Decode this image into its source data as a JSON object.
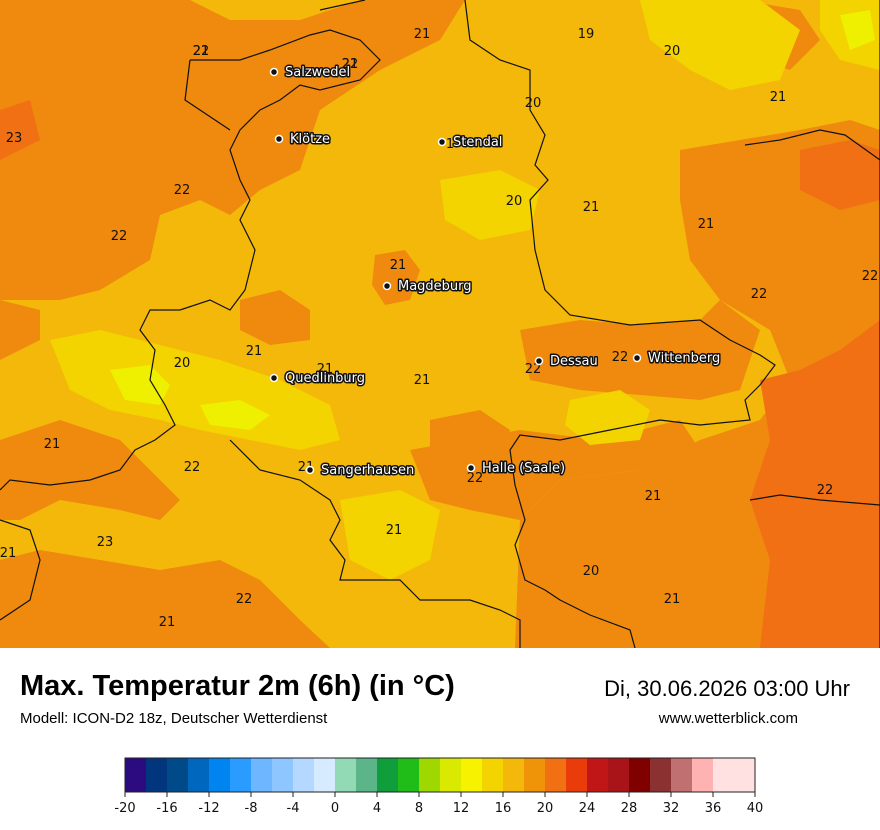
{
  "map": {
    "background_color": "#f3b809",
    "cities": [
      {
        "name": "Salzwedel"
      },
      {
        "name": "Klötze"
      },
      {
        "name": "Stendal"
      },
      {
        "name": "Magdeburg"
      },
      {
        "name": "Dessau"
      },
      {
        "name": "Wittenberg"
      },
      {
        "name": "Quedlinburg"
      },
      {
        "name": "Sangerhausen"
      },
      {
        "name": "Halle (Saale)"
      }
    ],
    "temperature_labels": [
      "22",
      "22",
      "21",
      "19",
      "20",
      "21",
      "20",
      "23",
      "1",
      "22",
      "22",
      "20",
      "21",
      "21",
      "21",
      "22",
      "22",
      "21",
      "21",
      "20",
      "21",
      "22",
      "22",
      "21",
      "22",
      "21",
      "22",
      "21",
      "22",
      "21",
      "21",
      "23",
      "20",
      "21",
      "22",
      "21",
      "22",
      "21",
      "21"
    ]
  },
  "footer": {
    "title": "Max. Temperatur 2m (6h) (in °C)",
    "model": "Modell: ICON-D2 18z, Deutscher Wetterdienst",
    "datetime": "Di, 30.06.2026 03:00 Uhr",
    "website": "www.wetterblick.com"
  },
  "scale": {
    "min": -20,
    "max": 40,
    "step": 2,
    "tick_labels": [
      "-20",
      "-16",
      "-12",
      "-8",
      "-4",
      "0",
      "4",
      "8",
      "12",
      "16",
      "20",
      "24",
      "28",
      "32",
      "36",
      "40"
    ],
    "colors": [
      "#2c0a7f",
      "#01357d",
      "#004a8a",
      "#0067be",
      "#0084f0",
      "#2a9cff",
      "#6eb6ff",
      "#8ec6ff",
      "#b4d8ff",
      "#d6ebff",
      "#92d9b6",
      "#5cb489",
      "#0f9e3b",
      "#20bc17",
      "#9fd800",
      "#d9e900",
      "#f6f200",
      "#f3d300",
      "#f3b809",
      "#ef9409",
      "#f17014",
      "#e93c0a",
      "#c11617",
      "#a91418",
      "#800000",
      "#8b3131",
      "#c07070",
      "#ffb2b2",
      "#ffe1e1"
    ]
  }
}
